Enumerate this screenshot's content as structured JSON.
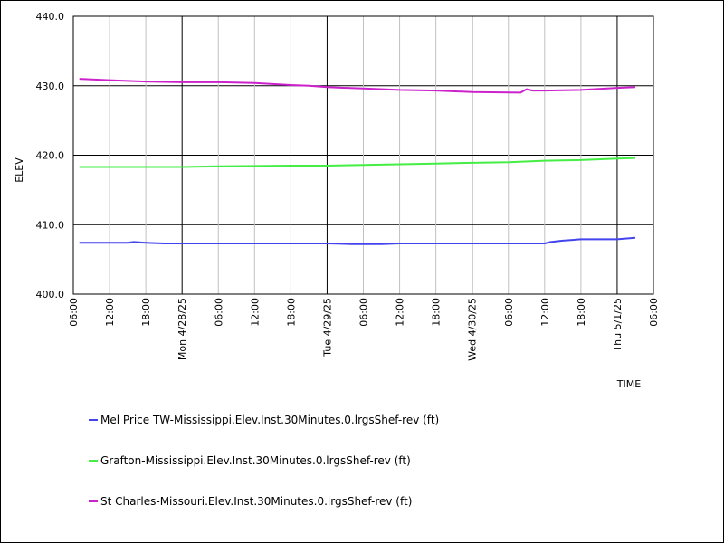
{
  "chart_data": {
    "type": "line",
    "title": "",
    "xlabel": "TIME",
    "ylabel": "ELEV",
    "ylim": [
      400,
      440
    ],
    "xlim": [
      "2025-04-27T06:00",
      "2025-05-01T06:00"
    ],
    "grid": true,
    "legend_position": "bottom",
    "yticks": [
      "400.0",
      "410.0",
      "420.0",
      "430.0",
      "440.0"
    ],
    "xticks": [
      {
        "t": "2025-04-27T06:00",
        "label": "06:00",
        "major": false
      },
      {
        "t": "2025-04-27T12:00",
        "label": "12:00",
        "major": false
      },
      {
        "t": "2025-04-27T18:00",
        "label": "18:00",
        "major": false
      },
      {
        "t": "2025-04-28T00:00",
        "label": "Mon 4/28/25",
        "major": true
      },
      {
        "t": "2025-04-28T06:00",
        "label": "06:00",
        "major": false
      },
      {
        "t": "2025-04-28T12:00",
        "label": "12:00",
        "major": false
      },
      {
        "t": "2025-04-28T18:00",
        "label": "18:00",
        "major": false
      },
      {
        "t": "2025-04-29T00:00",
        "label": "Tue 4/29/25",
        "major": true
      },
      {
        "t": "2025-04-29T06:00",
        "label": "06:00",
        "major": false
      },
      {
        "t": "2025-04-29T12:00",
        "label": "12:00",
        "major": false
      },
      {
        "t": "2025-04-29T18:00",
        "label": "18:00",
        "major": false
      },
      {
        "t": "2025-04-30T00:00",
        "label": "Wed 4/30/25",
        "major": true
      },
      {
        "t": "2025-04-30T06:00",
        "label": "06:00",
        "major": false
      },
      {
        "t": "2025-04-30T12:00",
        "label": "12:00",
        "major": false
      },
      {
        "t": "2025-04-30T18:00",
        "label": "18:00",
        "major": false
      },
      {
        "t": "2025-05-01T00:00",
        "label": "Thu 5/1/25",
        "major": true
      },
      {
        "t": "2025-05-01T06:00",
        "label": "06:00",
        "major": false
      }
    ],
    "series": [
      {
        "name": "Mel Price TW-Mississippi.Elev.Inst.30Minutes.0.lrgsShef-rev (ft)",
        "color": "#4444ee",
        "x": [
          "2025-04-27T07:00",
          "2025-04-27T15:00",
          "2025-04-27T16:00",
          "2025-04-27T18:00",
          "2025-04-27T21:00",
          "2025-04-28T00:00",
          "2025-04-29T00:00",
          "2025-04-29T04:00",
          "2025-04-29T06:00",
          "2025-04-29T09:00",
          "2025-04-29T12:00",
          "2025-04-29T18:00",
          "2025-04-30T00:00",
          "2025-04-30T09:00",
          "2025-04-30T12:00",
          "2025-04-30T13:00",
          "2025-04-30T15:00",
          "2025-04-30T18:00",
          "2025-05-01T00:00",
          "2025-05-01T03:00"
        ],
        "values": [
          407.4,
          407.4,
          407.5,
          407.4,
          407.3,
          407.3,
          407.3,
          407.2,
          407.2,
          407.2,
          407.3,
          407.3,
          407.3,
          407.3,
          407.3,
          407.5,
          407.7,
          407.9,
          407.9,
          408.1
        ]
      },
      {
        "name": "Grafton-Mississippi.Elev.Inst.30Minutes.0.lrgsShef-rev (ft)",
        "color": "#44ee44",
        "x": [
          "2025-04-27T07:00",
          "2025-04-28T00:00",
          "2025-04-28T06:00",
          "2025-04-28T18:00",
          "2025-04-29T00:00",
          "2025-04-29T06:00",
          "2025-04-29T12:00",
          "2025-04-29T18:00",
          "2025-04-30T00:00",
          "2025-04-30T06:00",
          "2025-04-30T12:00",
          "2025-04-30T18:00",
          "2025-05-01T00:00",
          "2025-05-01T03:00"
        ],
        "values": [
          418.3,
          418.3,
          418.4,
          418.5,
          418.5,
          418.6,
          418.7,
          418.8,
          418.9,
          419.0,
          419.2,
          419.3,
          419.5,
          419.6
        ]
      },
      {
        "name": "St Charles-Missouri.Elev.Inst.30Minutes.0.lrgsShef-rev (ft)",
        "color": "#cc22cc",
        "x": [
          "2025-04-27T07:00",
          "2025-04-27T12:00",
          "2025-04-27T18:00",
          "2025-04-28T00:00",
          "2025-04-28T06:00",
          "2025-04-28T12:00",
          "2025-04-28T18:00",
          "2025-04-28T21:00",
          "2025-04-29T00:00",
          "2025-04-29T06:00",
          "2025-04-29T12:00",
          "2025-04-29T18:00",
          "2025-04-30T00:00",
          "2025-04-30T08:00",
          "2025-04-30T09:00",
          "2025-04-30T10:00",
          "2025-04-30T12:00",
          "2025-04-30T18:00",
          "2025-05-01T00:00",
          "2025-05-01T03:00"
        ],
        "values": [
          431.0,
          430.8,
          430.6,
          430.5,
          430.5,
          430.4,
          430.1,
          430.0,
          429.8,
          429.6,
          429.4,
          429.3,
          429.1,
          429.0,
          429.5,
          429.3,
          429.3,
          429.4,
          429.7,
          429.8
        ]
      }
    ]
  }
}
